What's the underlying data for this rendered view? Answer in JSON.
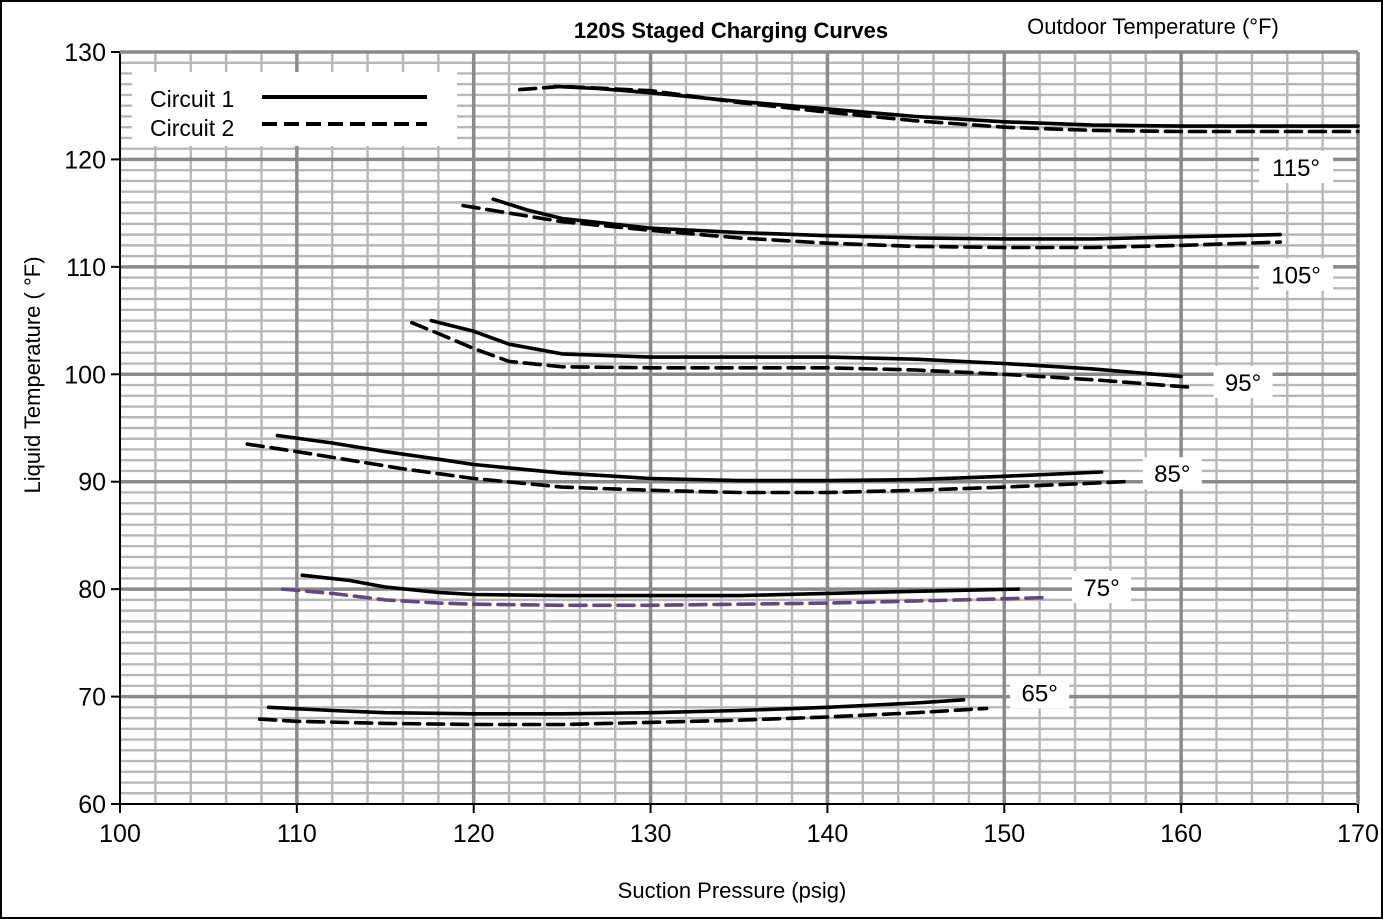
{
  "chart_data": {
    "type": "line",
    "title": "120S Staged Charging Curves",
    "subtitle": "Outdoor Temperature (°F)",
    "xlabel": "Suction Pressure (psig)",
    "ylabel": "Liquid Temperature ( °F)",
    "xlim": [
      100,
      170
    ],
    "ylim": [
      60,
      130
    ],
    "x_ticks": [
      "100",
      "110",
      "120",
      "130",
      "140",
      "150",
      "160",
      "170"
    ],
    "y_ticks": [
      "60",
      "70",
      "80",
      "90",
      "100",
      "110",
      "120",
      "130"
    ],
    "grid": true,
    "legend": {
      "position": "top-left",
      "entries": [
        {
          "label": "Circuit 1",
          "style": "solid"
        },
        {
          "label": "Circuit 2",
          "style": "dashed"
        }
      ]
    },
    "colors": {
      "line": "#000000",
      "highlight_series": "#5f4b7d",
      "grid_major": "#8a8a8a",
      "grid_minor": "#b8b8b8"
    },
    "series": [
      {
        "temp": "115°",
        "circuit": 1,
        "label_at": [
          166.5,
          119.2
        ],
        "points": [
          [
            124.6,
            126.8
          ],
          [
            127,
            126.6
          ],
          [
            130,
            126.2
          ],
          [
            135,
            125.4
          ],
          [
            140,
            124.7
          ],
          [
            145,
            124.0
          ],
          [
            150,
            123.5
          ],
          [
            155,
            123.2
          ],
          [
            160,
            123.1
          ],
          [
            165,
            123.1
          ],
          [
            170,
            123.1
          ]
        ]
      },
      {
        "temp": "115°",
        "circuit": 2,
        "label_at": null,
        "points": [
          [
            122.6,
            126.5
          ],
          [
            125,
            126.8
          ],
          [
            130,
            126.4
          ],
          [
            135,
            125.3
          ],
          [
            140,
            124.4
          ],
          [
            145,
            123.6
          ],
          [
            150,
            123.0
          ],
          [
            155,
            122.7
          ],
          [
            160,
            122.6
          ],
          [
            165,
            122.6
          ],
          [
            170,
            122.6
          ]
        ]
      },
      {
        "temp": "105°",
        "circuit": 1,
        "label_at": [
          166.5,
          109.2
        ],
        "points": [
          [
            121.1,
            116.3
          ],
          [
            123,
            115.3
          ],
          [
            125,
            114.5
          ],
          [
            130,
            113.6
          ],
          [
            135,
            113.2
          ],
          [
            140,
            112.9
          ],
          [
            145,
            112.7
          ],
          [
            150,
            112.6
          ],
          [
            155,
            112.6
          ],
          [
            160,
            112.8
          ],
          [
            165.6,
            113.0
          ]
        ]
      },
      {
        "temp": "105°",
        "circuit": 2,
        "label_at": null,
        "points": [
          [
            119.4,
            115.7
          ],
          [
            122,
            115.0
          ],
          [
            125,
            114.2
          ],
          [
            130,
            113.4
          ],
          [
            135,
            112.7
          ],
          [
            140,
            112.2
          ],
          [
            145,
            111.9
          ],
          [
            150,
            111.8
          ],
          [
            155,
            111.8
          ],
          [
            160,
            112.0
          ],
          [
            165.6,
            112.3
          ]
        ]
      },
      {
        "temp": "95°",
        "circuit": 1,
        "label_at": [
          163.5,
          99.2
        ],
        "points": [
          [
            117.6,
            105.0
          ],
          [
            120,
            104.0
          ],
          [
            122,
            102.8
          ],
          [
            125,
            101.9
          ],
          [
            130,
            101.6
          ],
          [
            135,
            101.6
          ],
          [
            140,
            101.6
          ],
          [
            145,
            101.4
          ],
          [
            150,
            101.0
          ],
          [
            155,
            100.5
          ],
          [
            160,
            99.8
          ]
        ]
      },
      {
        "temp": "95°",
        "circuit": 2,
        "label_at": null,
        "points": [
          [
            116.5,
            104.8
          ],
          [
            118,
            103.8
          ],
          [
            120,
            102.4
          ],
          [
            122,
            101.2
          ],
          [
            125,
            100.7
          ],
          [
            130,
            100.6
          ],
          [
            135,
            100.6
          ],
          [
            140,
            100.6
          ],
          [
            145,
            100.4
          ],
          [
            150,
            100.0
          ],
          [
            155,
            99.5
          ],
          [
            160.5,
            98.8
          ]
        ]
      },
      {
        "temp": "85°",
        "circuit": 1,
        "label_at": [
          159.5,
          90.7
        ],
        "points": [
          [
            108.9,
            94.3
          ],
          [
            112,
            93.6
          ],
          [
            115,
            92.8
          ],
          [
            118,
            92.1
          ],
          [
            120,
            91.6
          ],
          [
            125,
            90.8
          ],
          [
            130,
            90.3
          ],
          [
            135,
            90.1
          ],
          [
            140,
            90.1
          ],
          [
            145,
            90.2
          ],
          [
            150,
            90.5
          ],
          [
            155.5,
            90.9
          ]
        ]
      },
      {
        "temp": "85°",
        "circuit": 2,
        "label_at": null,
        "points": [
          [
            107.2,
            93.5
          ],
          [
            110,
            92.8
          ],
          [
            113,
            92.0
          ],
          [
            116,
            91.2
          ],
          [
            120,
            90.3
          ],
          [
            125,
            89.5
          ],
          [
            130,
            89.2
          ],
          [
            135,
            89.0
          ],
          [
            140,
            89.0
          ],
          [
            145,
            89.2
          ],
          [
            150,
            89.5
          ],
          [
            156.8,
            90.0
          ]
        ]
      },
      {
        "temp": "75°",
        "circuit": 1,
        "label_at": [
          155.5,
          80.1
        ],
        "points": [
          [
            110.3,
            81.3
          ],
          [
            113,
            80.8
          ],
          [
            115,
            80.2
          ],
          [
            118,
            79.7
          ],
          [
            120,
            79.5
          ],
          [
            125,
            79.4
          ],
          [
            130,
            79.4
          ],
          [
            135,
            79.4
          ],
          [
            140,
            79.6
          ],
          [
            145,
            79.8
          ],
          [
            150.8,
            80.0
          ]
        ]
      },
      {
        "temp": "75°",
        "circuit": 2,
        "label_at": null,
        "highlight": true,
        "points": [
          [
            109.2,
            80.0
          ],
          [
            112,
            79.6
          ],
          [
            115,
            79.0
          ],
          [
            118,
            78.7
          ],
          [
            120,
            78.6
          ],
          [
            125,
            78.5
          ],
          [
            130,
            78.5
          ],
          [
            135,
            78.6
          ],
          [
            140,
            78.7
          ],
          [
            145,
            78.9
          ],
          [
            150,
            79.1
          ],
          [
            152.2,
            79.2
          ]
        ]
      },
      {
        "temp": "65°",
        "circuit": 1,
        "label_at": [
          152.0,
          70.3
        ],
        "points": [
          [
            108.4,
            69.0
          ],
          [
            112,
            68.7
          ],
          [
            115,
            68.5
          ],
          [
            120,
            68.4
          ],
          [
            125,
            68.4
          ],
          [
            130,
            68.5
          ],
          [
            135,
            68.7
          ],
          [
            140,
            69.0
          ],
          [
            145,
            69.4
          ],
          [
            147.7,
            69.7
          ]
        ]
      },
      {
        "temp": "65°",
        "circuit": 2,
        "label_at": null,
        "points": [
          [
            107.9,
            67.9
          ],
          [
            110,
            67.7
          ],
          [
            115,
            67.5
          ],
          [
            120,
            67.4
          ],
          [
            125,
            67.4
          ],
          [
            130,
            67.6
          ],
          [
            135,
            67.8
          ],
          [
            140,
            68.1
          ],
          [
            145,
            68.5
          ],
          [
            149.0,
            68.9
          ]
        ]
      }
    ]
  }
}
